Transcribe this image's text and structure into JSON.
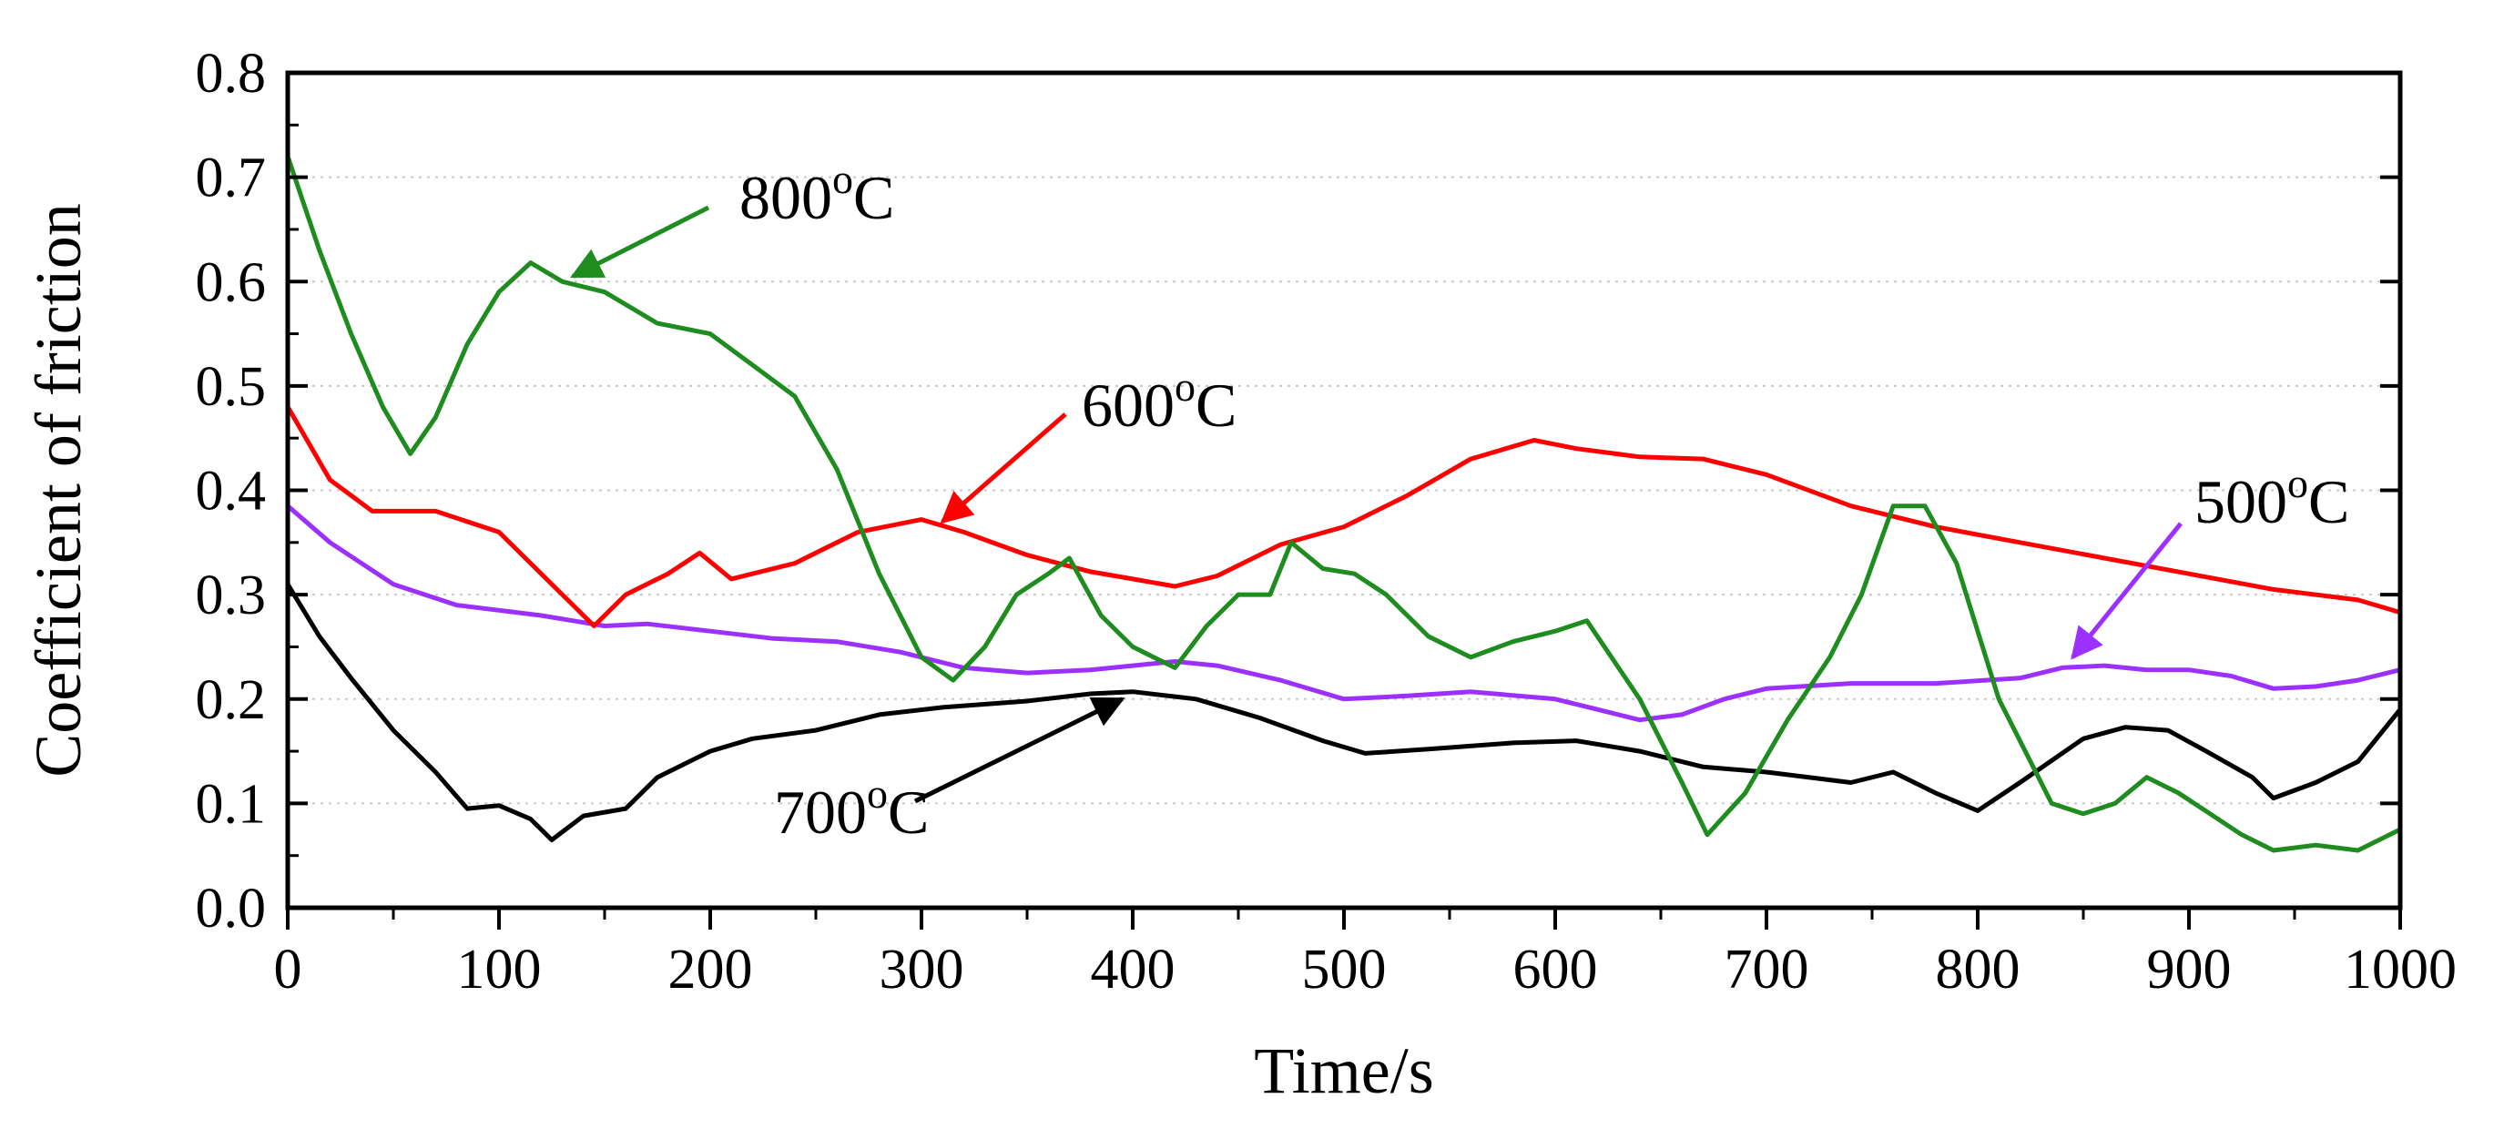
{
  "chart_data": {
    "type": "line",
    "title": "",
    "xlabel": "Time/s",
    "ylabel": "Coefficient of friction",
    "xlim": [
      0,
      1000
    ],
    "ylim": [
      0.0,
      0.8
    ],
    "xticks": [
      "0",
      "100",
      "200",
      "300",
      "400",
      "500",
      "600",
      "700",
      "800",
      "900",
      "1000"
    ],
    "yticks": [
      "0.0",
      "0.1",
      "0.2",
      "0.3",
      "0.4",
      "0.5",
      "0.6",
      "0.7",
      "0.8"
    ],
    "grid": "dotted-horizontal",
    "series": [
      {
        "name": "500oC",
        "color": "#9b30ff",
        "x": [
          0,
          20,
          50,
          80,
          120,
          150,
          170,
          200,
          230,
          260,
          290,
          320,
          350,
          380,
          400,
          420,
          440,
          470,
          500,
          530,
          560,
          600,
          620,
          640,
          660,
          680,
          700,
          740,
          780,
          820,
          840,
          860,
          880,
          900,
          920,
          940,
          960,
          980,
          1000
        ],
        "y": [
          0.385,
          0.35,
          0.31,
          0.29,
          0.28,
          0.27,
          0.272,
          0.265,
          0.258,
          0.255,
          0.245,
          0.23,
          0.225,
          0.228,
          0.232,
          0.236,
          0.232,
          0.218,
          0.2,
          0.203,
          0.207,
          0.2,
          0.19,
          0.18,
          0.185,
          0.2,
          0.21,
          0.215,
          0.215,
          0.22,
          0.23,
          0.232,
          0.228,
          0.228,
          0.222,
          0.21,
          0.212,
          0.218,
          0.228
        ]
      },
      {
        "name": "600oC",
        "color": "#ff0000",
        "x": [
          0,
          20,
          40,
          70,
          100,
          130,
          145,
          160,
          180,
          195,
          210,
          240,
          270,
          300,
          320,
          350,
          380,
          400,
          420,
          440,
          470,
          500,
          530,
          560,
          590,
          610,
          640,
          670,
          700,
          740,
          780,
          820,
          860,
          900,
          940,
          980,
          1000
        ],
        "y": [
          0.48,
          0.41,
          0.38,
          0.38,
          0.36,
          0.3,
          0.27,
          0.3,
          0.32,
          0.34,
          0.315,
          0.33,
          0.36,
          0.372,
          0.36,
          0.338,
          0.322,
          0.315,
          0.308,
          0.318,
          0.348,
          0.365,
          0.395,
          0.43,
          0.448,
          0.44,
          0.432,
          0.43,
          0.415,
          0.385,
          0.365,
          0.35,
          0.335,
          0.32,
          0.305,
          0.295,
          0.283
        ]
      },
      {
        "name": "700oC",
        "color": "#000000",
        "x": [
          0,
          15,
          30,
          50,
          70,
          85,
          100,
          115,
          125,
          140,
          160,
          175,
          200,
          220,
          250,
          280,
          310,
          350,
          380,
          400,
          430,
          460,
          490,
          510,
          540,
          580,
          610,
          640,
          670,
          700,
          740,
          760,
          780,
          800,
          820,
          850,
          870,
          890,
          910,
          930,
          940,
          960,
          980,
          1000
        ],
        "y": [
          0.31,
          0.26,
          0.22,
          0.17,
          0.13,
          0.095,
          0.098,
          0.085,
          0.065,
          0.088,
          0.095,
          0.125,
          0.15,
          0.162,
          0.17,
          0.185,
          0.192,
          0.198,
          0.205,
          0.207,
          0.2,
          0.182,
          0.16,
          0.148,
          0.152,
          0.158,
          0.16,
          0.15,
          0.135,
          0.13,
          0.12,
          0.13,
          0.11,
          0.093,
          0.12,
          0.162,
          0.173,
          0.17,
          0.148,
          0.125,
          0.105,
          0.12,
          0.14,
          0.19
        ]
      },
      {
        "name": "800oC",
        "color": "#1e8c1e",
        "x": [
          0,
          15,
          30,
          45,
          58,
          70,
          85,
          100,
          115,
          130,
          150,
          175,
          200,
          220,
          240,
          260,
          280,
          300,
          315,
          330,
          345,
          360,
          370,
          385,
          400,
          420,
          435,
          450,
          465,
          475,
          490,
          505,
          520,
          540,
          560,
          580,
          600,
          615,
          640,
          660,
          672,
          690,
          710,
          730,
          745,
          760,
          775,
          790,
          810,
          835,
          850,
          865,
          880,
          895,
          910,
          925,
          940,
          960,
          980,
          1000
        ],
        "y": [
          0.72,
          0.63,
          0.55,
          0.48,
          0.435,
          0.47,
          0.54,
          0.59,
          0.618,
          0.6,
          0.59,
          0.56,
          0.55,
          0.52,
          0.49,
          0.42,
          0.32,
          0.24,
          0.218,
          0.25,
          0.3,
          0.32,
          0.335,
          0.28,
          0.25,
          0.23,
          0.27,
          0.3,
          0.3,
          0.35,
          0.325,
          0.32,
          0.3,
          0.26,
          0.24,
          0.255,
          0.265,
          0.275,
          0.2,
          0.12,
          0.07,
          0.11,
          0.18,
          0.24,
          0.3,
          0.385,
          0.385,
          0.33,
          0.2,
          0.1,
          0.09,
          0.1,
          0.125,
          0.11,
          0.09,
          0.07,
          0.055,
          0.06,
          0.055,
          0.075
        ]
      }
    ],
    "annotations": [
      {
        "series": "800oC",
        "text": "800",
        "sup": "o",
        "unit": "C",
        "color": "#1e8c1e",
        "points_to": [
          135,
          0.605
        ]
      },
      {
        "series": "600oC",
        "text": "600",
        "sup": "o",
        "unit": "C",
        "color": "#ff0000",
        "points_to": [
          310,
          0.37
        ]
      },
      {
        "series": "500oC",
        "text": "500",
        "sup": "o",
        "unit": "C",
        "color": "#9b30ff",
        "points_to": [
          845,
          0.24
        ]
      },
      {
        "series": "700oC",
        "text": "700",
        "sup": "o",
        "unit": "C",
        "color": "#000000",
        "points_to": [
          395,
          0.2
        ]
      }
    ]
  }
}
